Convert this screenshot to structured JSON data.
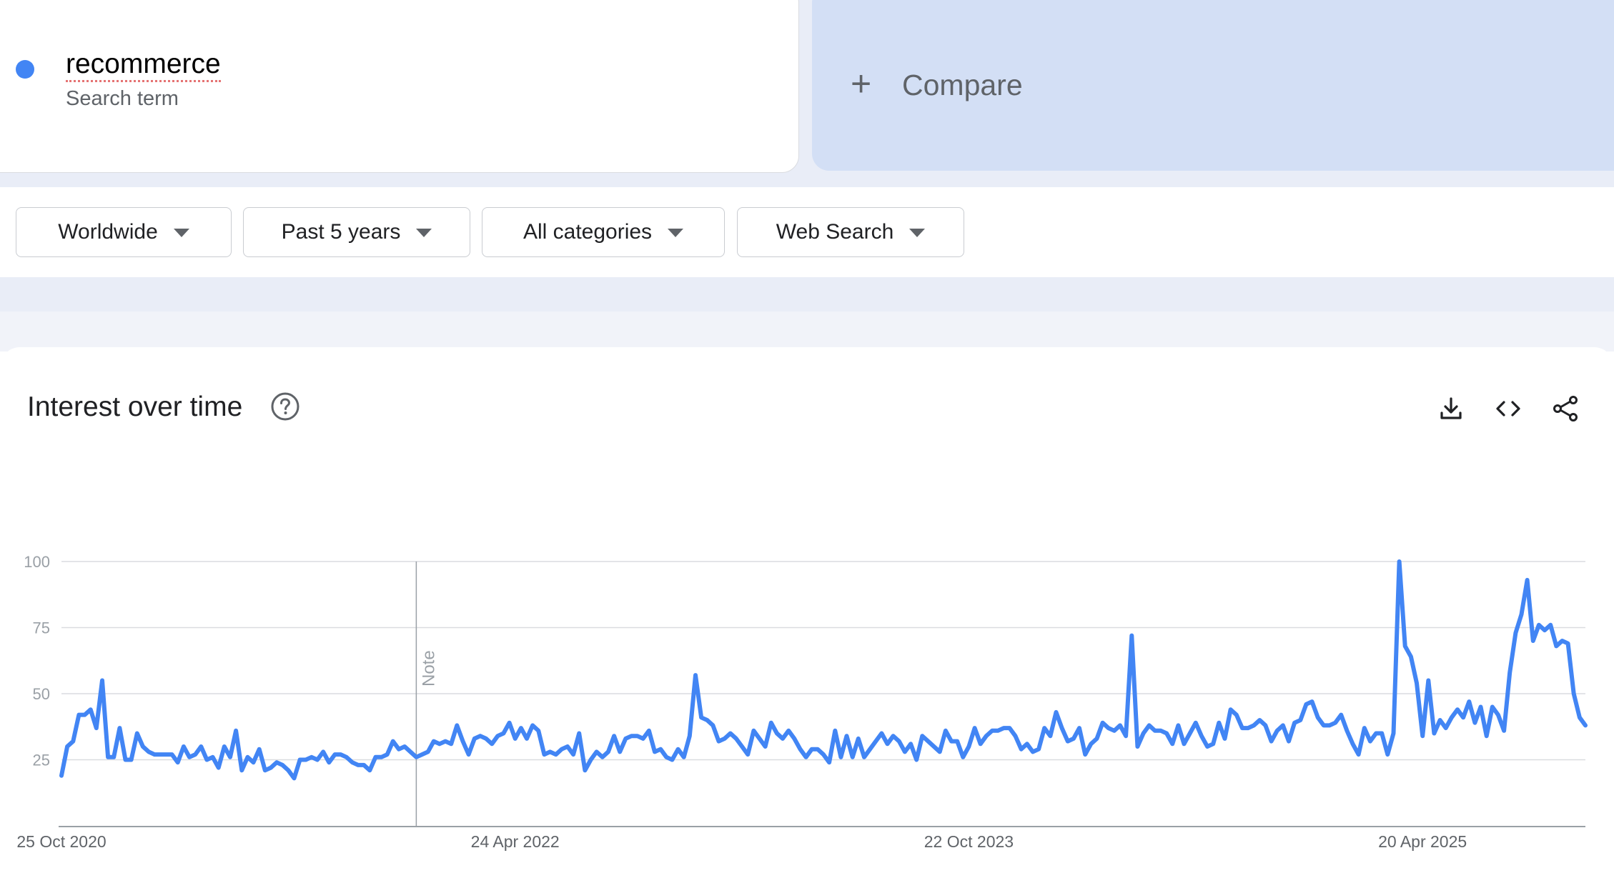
{
  "search_term": {
    "name": "recommerce",
    "type_label": "Search term",
    "color": "#4285f4"
  },
  "compare": {
    "icon": "plus-icon",
    "label": "Compare"
  },
  "filters": [
    {
      "label": "Worldwide",
      "icon": "caret-down-icon"
    },
    {
      "label": "Past 5 years",
      "icon": "caret-down-icon"
    },
    {
      "label": "All categories",
      "icon": "caret-down-icon"
    },
    {
      "label": "Web Search",
      "icon": "caret-down-icon"
    }
  ],
  "panel": {
    "title": "Interest over time",
    "icons": [
      "help-icon",
      "download-icon",
      "embed-code-icon",
      "share-icon"
    ]
  },
  "chart_data": {
    "type": "line",
    "title": "",
    "xlabel": "",
    "ylabel": "",
    "ylim": [
      0,
      100
    ],
    "y_ticks": [
      25,
      50,
      75,
      100
    ],
    "grid": true,
    "x_tick_labels": [
      "25 Oct 2020",
      "24 Apr 2022",
      "22 Oct 2023",
      "20 Apr 2025"
    ],
    "x_tick_index": [
      0,
      78,
      156,
      234
    ],
    "note_label": "Note",
    "note_index": 61,
    "series": [
      {
        "color": "#4285f4",
        "values": [
          19,
          30,
          32,
          42,
          42,
          44,
          37,
          55,
          26,
          26,
          37,
          25,
          25,
          35,
          30,
          28,
          27,
          27,
          27,
          27,
          24,
          30,
          26,
          27,
          30,
          25,
          26,
          22,
          30,
          26,
          36,
          21,
          26,
          24,
          29,
          21,
          22,
          24,
          23,
          21,
          18,
          25,
          25,
          26,
          25,
          28,
          24,
          27,
          27,
          26,
          24,
          23,
          23,
          21,
          26,
          26,
          27,
          32,
          29,
          30,
          28,
          26,
          27,
          28,
          32,
          31,
          32,
          31,
          38,
          32,
          27,
          33,
          34,
          33,
          31,
          34,
          35,
          39,
          33,
          37,
          33,
          38,
          36,
          27,
          28,
          27,
          29,
          30,
          27,
          35,
          21,
          25,
          28,
          26,
          28,
          34,
          28,
          33,
          34,
          34,
          33,
          36,
          28,
          29,
          26,
          25,
          29,
          26,
          34,
          57,
          41,
          40,
          38,
          32,
          33,
          35,
          33,
          30,
          27,
          36,
          33,
          30,
          39,
          35,
          33,
          36,
          33,
          29,
          26,
          29,
          29,
          27,
          24,
          36,
          26,
          34,
          26,
          33,
          26,
          29,
          32,
          35,
          31,
          34,
          32,
          28,
          31,
          25,
          34,
          32,
          30,
          28,
          36,
          32,
          32,
          26,
          30,
          37,
          31,
          34,
          36,
          36,
          37,
          37,
          34,
          29,
          31,
          28,
          29,
          37,
          34,
          43,
          37,
          32,
          33,
          37,
          27,
          31,
          33,
          39,
          37,
          36,
          38,
          34,
          72,
          30,
          35,
          38,
          36,
          36,
          35,
          31,
          38,
          31,
          35,
          39,
          34,
          30,
          31,
          39,
          33,
          44,
          42,
          37,
          37,
          38,
          40,
          38,
          32,
          36,
          38,
          32,
          39,
          40,
          46,
          47,
          41,
          38,
          38,
          39,
          42,
          36,
          31,
          27,
          37,
          32,
          35,
          35,
          27,
          35,
          100,
          68,
          64,
          54,
          34,
          55,
          35,
          40,
          37,
          41,
          44,
          41,
          47,
          39,
          45,
          34,
          45,
          42,
          36,
          58,
          73,
          80,
          93,
          70,
          76,
          74,
          76,
          68,
          70,
          69,
          50,
          41,
          38
        ]
      }
    ]
  }
}
